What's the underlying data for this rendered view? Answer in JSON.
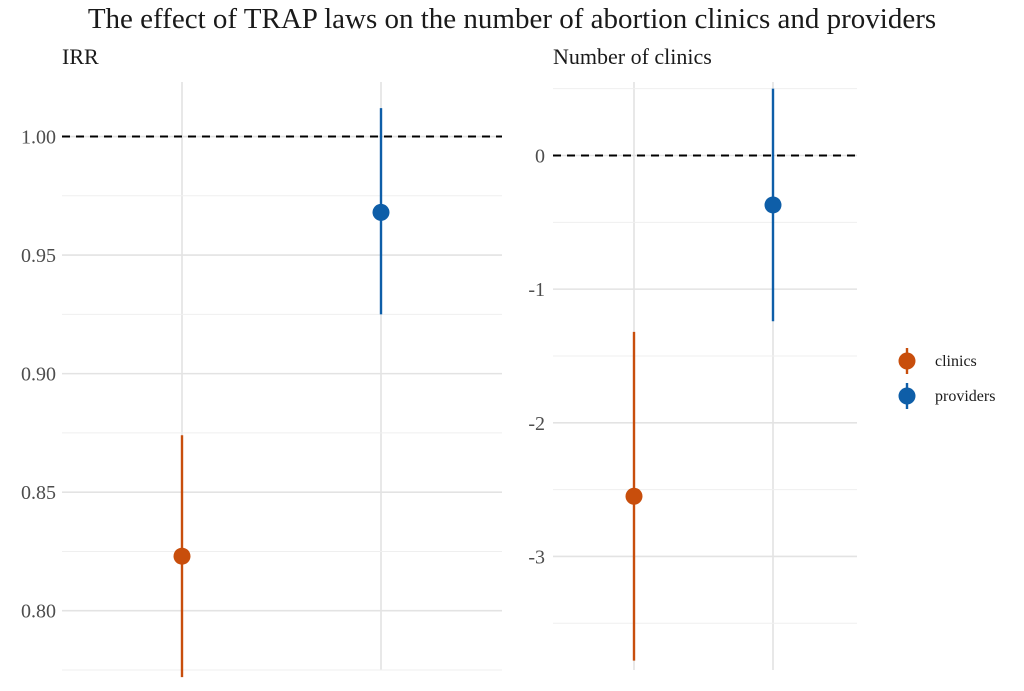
{
  "title": "The effect of TRAP laws on the number of abortion clinics and providers",
  "colors": {
    "clinics": "#c84e0c",
    "providers": "#0e5ea8"
  },
  "legend": {
    "position": "right",
    "items": [
      {
        "key": "clinics",
        "label": "clinics"
      },
      {
        "key": "providers",
        "label": "providers"
      }
    ]
  },
  "chart_data": [
    {
      "type": "scatter",
      "subtitle": "IRR",
      "reference_line": 1.0,
      "ylim": [
        0.775,
        1.023
      ],
      "yticks": [
        0.8,
        0.85,
        0.9,
        0.95,
        1.0
      ],
      "ytick_labels": [
        "0.80",
        "0.85",
        "0.90",
        "0.95",
        "1.00"
      ],
      "grid": true,
      "categories": [
        "clinics",
        "providers"
      ],
      "series": [
        {
          "name": "clinics",
          "value": 0.823,
          "low": 0.772,
          "high": 0.874
        },
        {
          "name": "providers",
          "value": 0.968,
          "low": 0.925,
          "high": 1.012
        }
      ]
    },
    {
      "type": "scatter",
      "subtitle": "Number of clinics",
      "reference_line": 0,
      "ylim": [
        -3.85,
        0.55
      ],
      "yticks": [
        -3,
        -2,
        -1,
        0
      ],
      "ytick_labels": [
        "-3",
        "-2",
        "-1",
        "0"
      ],
      "grid": true,
      "categories": [
        "clinics",
        "providers"
      ],
      "series": [
        {
          "name": "clinics",
          "value": -2.55,
          "low": -3.78,
          "high": -1.32
        },
        {
          "name": "providers",
          "value": -0.37,
          "low": -1.24,
          "high": 0.5
        }
      ]
    }
  ]
}
